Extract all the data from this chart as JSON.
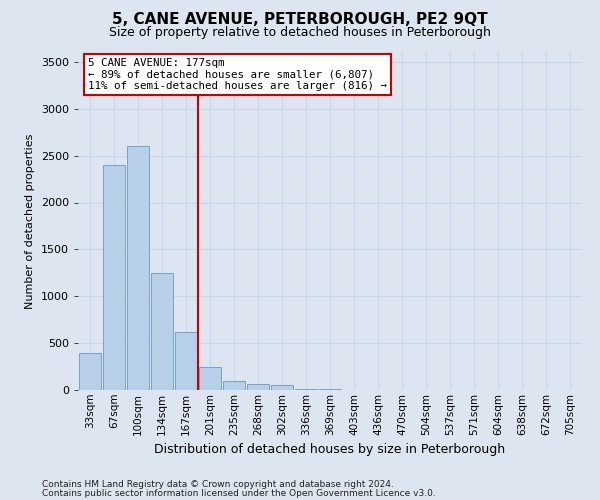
{
  "title": "5, CANE AVENUE, PETERBOROUGH, PE2 9QT",
  "subtitle": "Size of property relative to detached houses in Peterborough",
  "xlabel": "Distribution of detached houses by size in Peterborough",
  "ylabel": "Number of detached properties",
  "footnote1": "Contains HM Land Registry data © Crown copyright and database right 2024.",
  "footnote2": "Contains public sector information licensed under the Open Government Licence v3.0.",
  "categories": [
    "33sqm",
    "67sqm",
    "100sqm",
    "134sqm",
    "167sqm",
    "201sqm",
    "235sqm",
    "268sqm",
    "302sqm",
    "336sqm",
    "369sqm",
    "403sqm",
    "436sqm",
    "470sqm",
    "504sqm",
    "537sqm",
    "571sqm",
    "604sqm",
    "638sqm",
    "672sqm",
    "705sqm"
  ],
  "values": [
    400,
    2400,
    2600,
    1250,
    620,
    250,
    100,
    60,
    50,
    15,
    8,
    4,
    2,
    2,
    1,
    1,
    0,
    0,
    0,
    0,
    0
  ],
  "bar_color": "#b8cfe8",
  "bar_edge_color": "#6699cc",
  "grid_color": "#c8d4e8",
  "background_color": "#dde6f0",
  "vline_color": "#cc0000",
  "annotation_title": "5 CANE AVENUE: 177sqm",
  "annotation_line1": "← 89% of detached houses are smaller (6,807)",
  "annotation_line2": "11% of semi-detached houses are larger (816) →",
  "annotation_box_color": "#ffffff",
  "annotation_box_edge": "#cc0000",
  "ylim": [
    0,
    3600
  ],
  "yticks": [
    0,
    500,
    1000,
    1500,
    2000,
    2500,
    3000,
    3500
  ],
  "title_fontsize": 11,
  "subtitle_fontsize": 9,
  "ylabel_fontsize": 8,
  "xlabel_fontsize": 9
}
